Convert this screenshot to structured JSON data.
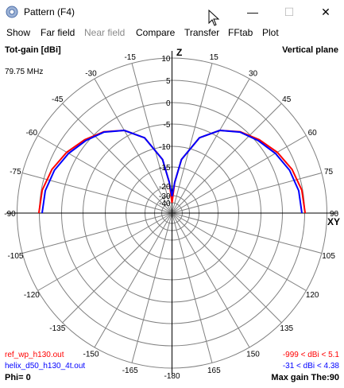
{
  "window": {
    "title": "Pattern   (F4)",
    "controls": {
      "minimize": "—",
      "maximize": "☐",
      "close": "✕"
    }
  },
  "menu": [
    "Show",
    "Far field",
    "Near field",
    "Compare",
    "Transfer",
    "FFtab",
    "Plot"
  ],
  "menu_disabled": [
    "Near field"
  ],
  "plot": {
    "header_left": "Tot-gain [dBi]",
    "header_right": "Vertical plane",
    "frequency": "79.75 MHz",
    "z_label": "Z",
    "xy_label": "XY",
    "phi": "Phi= 0",
    "max_gain": "Max gain The:90",
    "radial_labels": [
      "10",
      "5",
      "0",
      "-5",
      "-10",
      "-15",
      "-20",
      "-30",
      "-40"
    ],
    "angle_labels": [
      "-15",
      "-30",
      "-45",
      "-60",
      "-75",
      "-90",
      "-105",
      "-120",
      "-135",
      "-150",
      "-165",
      "-180",
      "165",
      "150",
      "135",
      "120",
      "105",
      "90",
      "75",
      "60",
      "45",
      "30",
      "15"
    ],
    "legend": [
      {
        "name": "ref_wp_h130.out",
        "range": "-999 < dBi < 5.1",
        "color": "#ff0000"
      },
      {
        "name": "helix_d50_h130_4t.out",
        "range": "-31 < dBi < 4.38",
        "color": "#0000ff"
      }
    ]
  },
  "chart_data": {
    "type": "polar",
    "title": "Vertical plane",
    "radial_unit": "Tot-gain [dBi]",
    "radial_ticks": [
      10,
      5,
      0,
      -5,
      -10,
      -15,
      -20,
      -30,
      -40
    ],
    "series": [
      {
        "name": "ref_wp_h130.out",
        "color": "#ff0000",
        "theta_deg": [
          0,
          5,
          10,
          20,
          30,
          40,
          50,
          60,
          70,
          80,
          90
        ],
        "gain_dbi": [
          -40,
          -19,
          -13,
          -7,
          -3.5,
          -1,
          0.8,
          2.5,
          3.9,
          4.8,
          5.1
        ]
      },
      {
        "name": "helix_d50_h130_4t.out",
        "color": "#0000ff",
        "theta_deg": [
          0,
          5,
          10,
          20,
          30,
          40,
          50,
          60,
          70,
          80,
          90
        ],
        "gain_dbi": [
          -31,
          -19,
          -13,
          -7,
          -3.5,
          -1.1,
          0.5,
          2,
          3.3,
          4.1,
          4.38
        ]
      }
    ]
  }
}
